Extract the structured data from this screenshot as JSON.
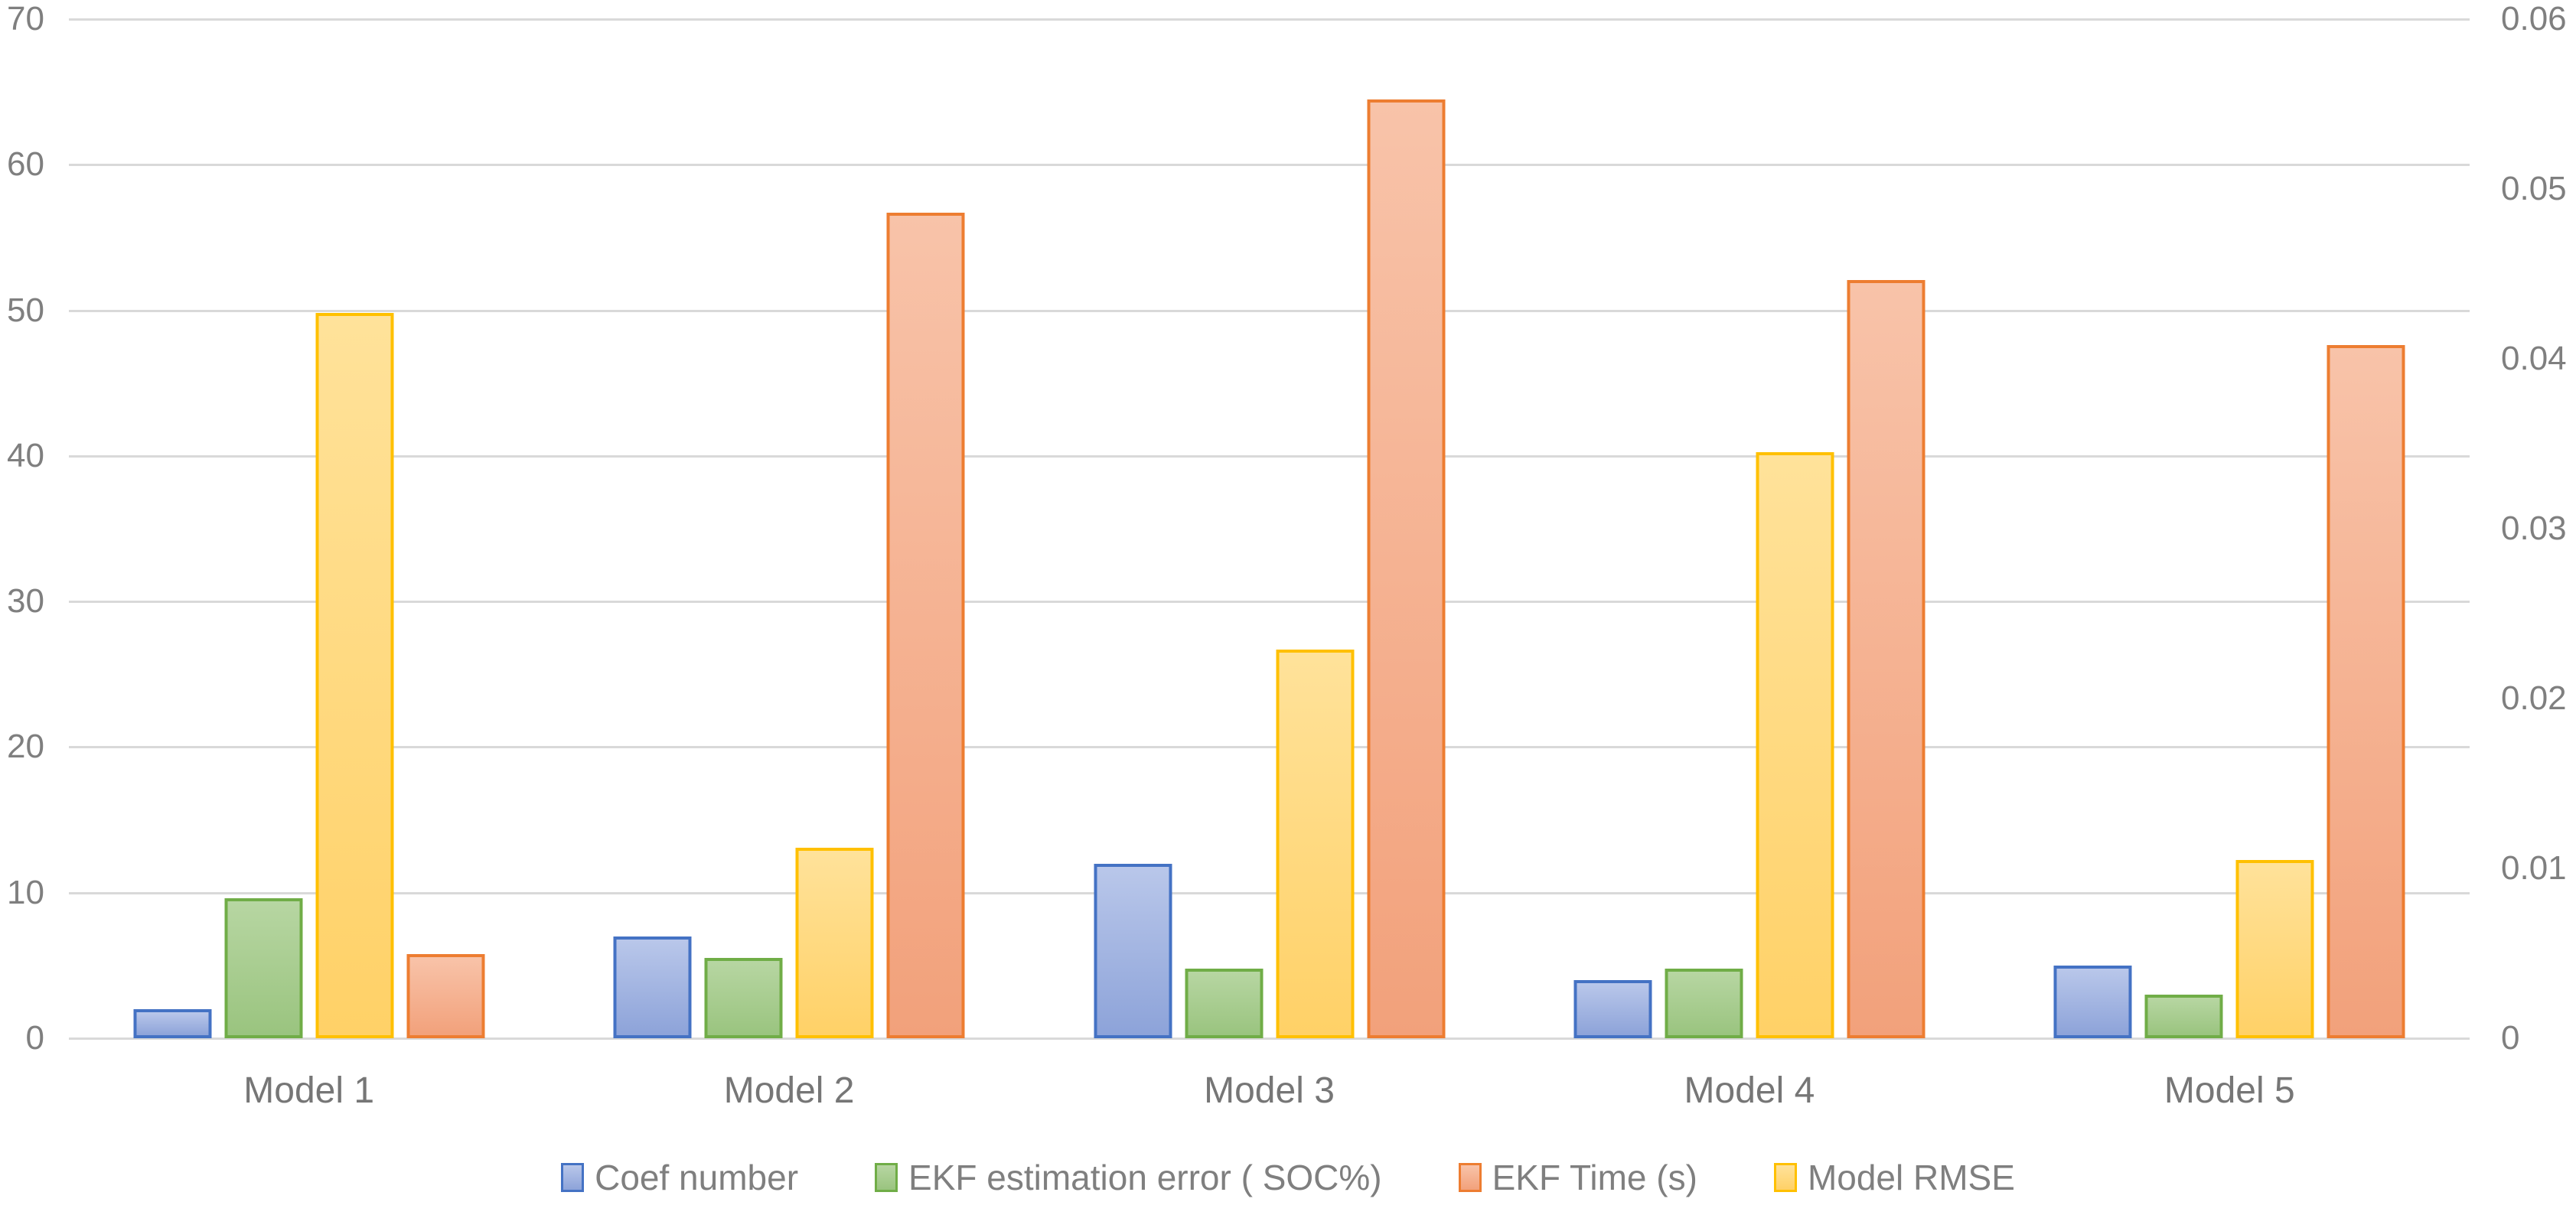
{
  "chart": {
    "background": "#ffffff",
    "axis_text_color": "#7F7F7F",
    "category_text_color": "#767676",
    "gridline_color": "#D9D9D9"
  },
  "chart_data": {
    "type": "bar",
    "title": "",
    "categories": [
      "Model 1",
      "Model 2",
      "Model 3",
      "Model 4",
      "Model 5"
    ],
    "series": [
      {
        "name": "Coef number",
        "axis": "primary",
        "values": [
          2,
          7,
          12,
          4,
          5
        ],
        "border_color": "#4472C4",
        "fill_top": "#B9C7EA",
        "fill_bottom": "#8DA3D9"
      },
      {
        "name": "EKF estimation error ( SOC%)",
        "axis": "primary",
        "values": [
          9.6,
          5.5,
          4.8,
          4.8,
          3
        ],
        "border_color": "#70AD47",
        "fill_top": "#B7D6A2",
        "fill_bottom": "#9AC47F"
      },
      {
        "name": "Model RMSE",
        "axis": "secondary",
        "values": [
          0.0427,
          0.0112,
          0.0229,
          0.0345,
          0.0105
        ],
        "border_color": "#FFC000",
        "fill_top": "#FFE29A",
        "fill_bottom": "#FFD167"
      },
      {
        "name": "EKF Time (s)",
        "axis": "primary",
        "values": [
          5.8,
          56.7,
          64.5,
          52.1,
          47.6
        ],
        "border_color": "#ED7D31",
        "fill_top": "#F8C3A9",
        "fill_bottom": "#F2A17B"
      }
    ],
    "legend_order": [
      "Coef number",
      "EKF estimation error ( SOC%)",
      "EKF Time (s)",
      "Model RMSE"
    ],
    "legend_position": "bottom",
    "grid": true,
    "left_axis": {
      "min": 0,
      "max": 70,
      "ticks": [
        0,
        10,
        20,
        30,
        40,
        50,
        60,
        70
      ]
    },
    "right_axis": {
      "min": 0,
      "max": 0.06,
      "ticks": [
        "0",
        "0.01",
        "0.02",
        "0.03",
        "0.04",
        "0.05",
        "0.06"
      ],
      "tick_values": [
        0,
        0.01,
        0.02,
        0.03,
        0.04,
        0.05,
        0.06
      ]
    }
  }
}
